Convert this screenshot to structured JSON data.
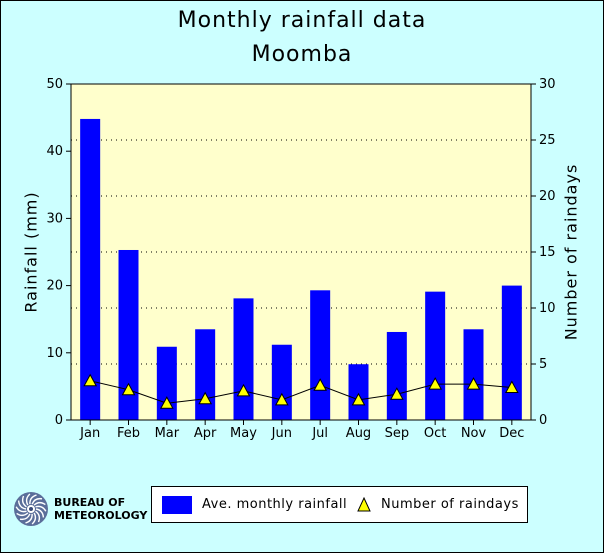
{
  "title": "Monthly rainfall data",
  "subtitle": "Moomba",
  "colors": {
    "background": "#ccffff",
    "plot_background": "#ffffcc",
    "bar": "#0000ff",
    "marker": "#ffff00"
  },
  "logo": {
    "line1": "BUREAU OF",
    "line2": "METEOROLOGY",
    "icon": "bom-swirl-logo-icon"
  },
  "legend": {
    "bar_label": "Ave. monthly rainfall",
    "marker_label": "Number of raindays",
    "placement": "bottom"
  },
  "chart_data": {
    "type": "bar",
    "title": "Monthly rainfall data",
    "subtitle": "Moomba",
    "categories": [
      "Jan",
      "Feb",
      "Mar",
      "Apr",
      "May",
      "Jun",
      "Jul",
      "Aug",
      "Sep",
      "Oct",
      "Nov",
      "Dec"
    ],
    "ylabel": "Rainfall (mm)",
    "y2label": "Number of raindays",
    "ylim": [
      0,
      50
    ],
    "y2lim": [
      0,
      30
    ],
    "yticks": [
      0,
      10,
      20,
      30,
      40,
      50
    ],
    "y2ticks": [
      0,
      5,
      10,
      15,
      20,
      25,
      30
    ],
    "grid": "dotted horizontal",
    "series": [
      {
        "name": "Ave. monthly rainfall",
        "type": "bar",
        "axis": "left",
        "values": [
          44.8,
          25.3,
          10.9,
          13.5,
          18.1,
          11.2,
          19.3,
          8.3,
          13.1,
          19.1,
          13.5,
          20.0
        ]
      },
      {
        "name": "Number of raindays",
        "type": "line-marker",
        "axis": "right",
        "values": [
          3.5,
          2.7,
          1.5,
          1.9,
          2.6,
          1.8,
          3.1,
          1.8,
          2.3,
          3.2,
          3.2,
          2.9
        ]
      }
    ]
  }
}
